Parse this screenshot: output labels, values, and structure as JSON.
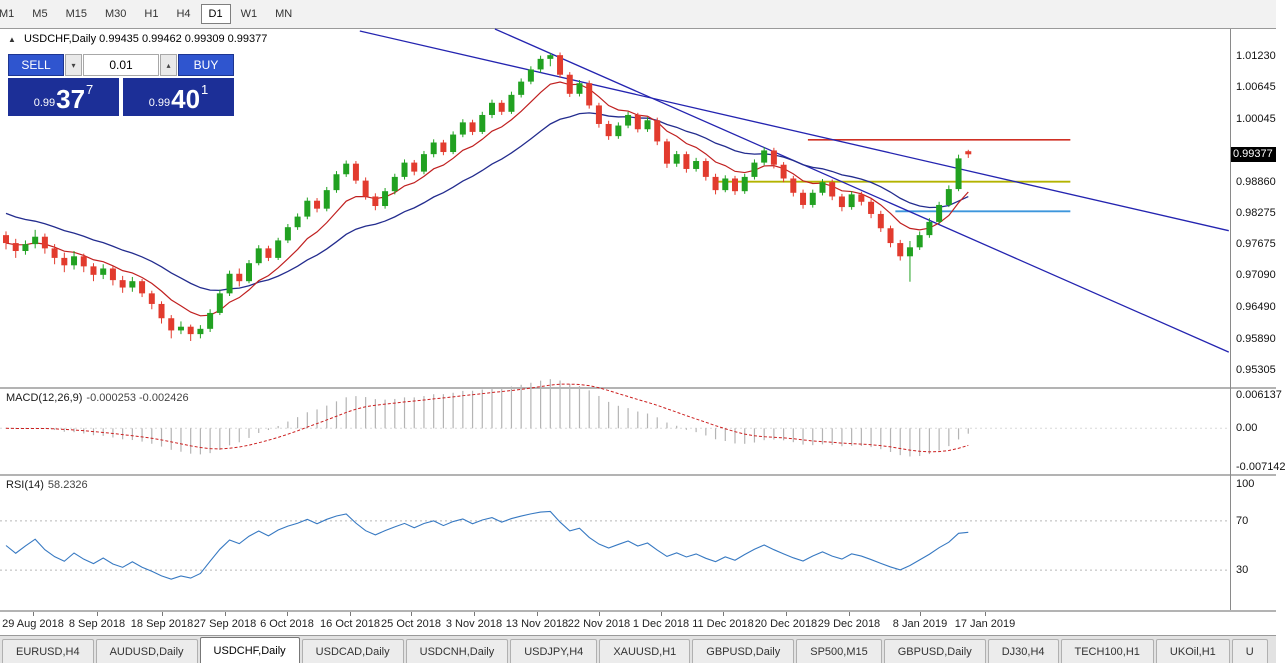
{
  "toolbar": {
    "timeframes": [
      "M1",
      "M5",
      "M15",
      "M30",
      "H1",
      "H4",
      "D1",
      "W1",
      "MN"
    ],
    "active": "D1"
  },
  "chart": {
    "symbol_line": "USDCHF,Daily 0.99435 0.99462 0.99309 0.99377",
    "price_badge": "0.99377",
    "price_axis": [
      "1.01230",
      "1.00645",
      "1.00045",
      "0.98860",
      "0.98275",
      "0.97675",
      "0.97090",
      "0.96490",
      "0.95890",
      "0.95305"
    ]
  },
  "trade": {
    "sell_label": "SELL",
    "buy_label": "BUY",
    "volume": "0.01",
    "sell_price_prefix": "0.99",
    "sell_price_main": "37",
    "sell_price_sup": "7",
    "buy_price_prefix": "0.99",
    "buy_price_main": "40",
    "buy_price_sup": "1"
  },
  "macd": {
    "name": "MACD(12,26,9)",
    "values": "-0.000253 -0.002426",
    "axis": [
      "0.006137",
      "0.00",
      "-0.007142"
    ]
  },
  "rsi": {
    "name": "RSI(14)",
    "value": "58.2326",
    "axis": [
      "100",
      "70",
      "30"
    ],
    "levels": [
      70,
      30
    ]
  },
  "tabs": [
    "EURUSD,H4",
    "AUDUSD,Daily",
    "USDCHF,Daily",
    "USDCAD,Daily",
    "USDCNH,Daily",
    "USDJPY,H4",
    "XAUUSD,H1",
    "GBPUSD,Daily",
    "SP500,M15",
    "GBPUSD,Daily",
    "DJ30,H4",
    "TECH100,H1",
    "UKOil,H1",
    "U"
  ],
  "tabs_active_index": 2,
  "chart_data": {
    "type": "candlestick",
    "symbol": "USDCHF",
    "timeframe": "Daily",
    "last_ohlc": {
      "open": 0.99435,
      "high": 0.99462,
      "low": 0.99309,
      "close": 0.99377
    },
    "y_range": [
      0.94981,
      1.01744
    ],
    "candles": [
      [
        0.9785,
        0.9792,
        0.9758,
        0.977
      ],
      [
        0.977,
        0.9778,
        0.9742,
        0.9755
      ],
      [
        0.9755,
        0.9775,
        0.9748,
        0.9768
      ],
      [
        0.9768,
        0.9795,
        0.976,
        0.9782
      ],
      [
        0.9782,
        0.9788,
        0.975,
        0.976
      ],
      [
        0.976,
        0.9768,
        0.973,
        0.9742
      ],
      [
        0.9742,
        0.9752,
        0.9715,
        0.9728
      ],
      [
        0.9728,
        0.9755,
        0.972,
        0.9745
      ],
      [
        0.9745,
        0.975,
        0.9715,
        0.9726
      ],
      [
        0.9726,
        0.9732,
        0.9698,
        0.971
      ],
      [
        0.971,
        0.973,
        0.9702,
        0.9722
      ],
      [
        0.9722,
        0.9726,
        0.969,
        0.97
      ],
      [
        0.97,
        0.9708,
        0.9676,
        0.9686
      ],
      [
        0.9686,
        0.9706,
        0.9678,
        0.9698
      ],
      [
        0.9698,
        0.9702,
        0.9668,
        0.9675
      ],
      [
        0.9675,
        0.968,
        0.9645,
        0.9655
      ],
      [
        0.9655,
        0.966,
        0.9618,
        0.9628
      ],
      [
        0.9628,
        0.9634,
        0.959,
        0.9605
      ],
      [
        0.9605,
        0.9622,
        0.9598,
        0.9612
      ],
      [
        0.9612,
        0.9616,
        0.9585,
        0.9598
      ],
      [
        0.9598,
        0.9615,
        0.959,
        0.9608
      ],
      [
        0.9608,
        0.9645,
        0.9602,
        0.9638
      ],
      [
        0.9638,
        0.9682,
        0.9634,
        0.9675
      ],
      [
        0.9675,
        0.9718,
        0.967,
        0.9712
      ],
      [
        0.9712,
        0.9722,
        0.9688,
        0.9698
      ],
      [
        0.9698,
        0.9738,
        0.9694,
        0.9732
      ],
      [
        0.9732,
        0.9766,
        0.9728,
        0.976
      ],
      [
        0.976,
        0.9765,
        0.9736,
        0.9742
      ],
      [
        0.9742,
        0.978,
        0.9738,
        0.9775
      ],
      [
        0.9775,
        0.9806,
        0.977,
        0.98
      ],
      [
        0.98,
        0.9826,
        0.9795,
        0.982
      ],
      [
        0.982,
        0.9856,
        0.9815,
        0.985
      ],
      [
        0.985,
        0.9855,
        0.9828,
        0.9835
      ],
      [
        0.9835,
        0.9876,
        0.983,
        0.987
      ],
      [
        0.987,
        0.9906,
        0.9865,
        0.99
      ],
      [
        0.99,
        0.9926,
        0.9895,
        0.992
      ],
      [
        0.992,
        0.9925,
        0.9882,
        0.9888
      ],
      [
        0.9888,
        0.9894,
        0.9852,
        0.9858
      ],
      [
        0.9858,
        0.9864,
        0.9832,
        0.984
      ],
      [
        0.984,
        0.9874,
        0.9835,
        0.9868
      ],
      [
        0.9868,
        0.9901,
        0.9862,
        0.9895
      ],
      [
        0.9895,
        0.9928,
        0.989,
        0.9922
      ],
      [
        0.9922,
        0.9927,
        0.9898,
        0.9905
      ],
      [
        0.9905,
        0.9944,
        0.99,
        0.9938
      ],
      [
        0.9938,
        0.9966,
        0.9932,
        0.996
      ],
      [
        0.996,
        0.9965,
        0.9936,
        0.9942
      ],
      [
        0.9942,
        0.9981,
        0.9938,
        0.9975
      ],
      [
        0.9975,
        1.0004,
        0.997,
        0.9998
      ],
      [
        0.9998,
        1.0003,
        0.9974,
        0.998
      ],
      [
        0.998,
        1.0018,
        0.9976,
        1.0012
      ],
      [
        1.0012,
        1.0041,
        1.0006,
        1.0035
      ],
      [
        1.0035,
        1.004,
        1.0012,
        1.0018
      ],
      [
        1.0018,
        1.0056,
        1.0014,
        1.005
      ],
      [
        1.005,
        1.0081,
        1.0045,
        1.0075
      ],
      [
        1.0075,
        1.0104,
        1.007,
        1.0098
      ],
      [
        1.0098,
        1.0124,
        1.0092,
        1.0118
      ],
      [
        1.0118,
        1.01285,
        1.0104,
        1.0125
      ],
      [
        1.0125,
        1.013,
        1.0082,
        1.0088
      ],
      [
        1.0088,
        1.0093,
        1.0046,
        1.0052
      ],
      [
        1.0052,
        1.0078,
        1.0047,
        1.0072
      ],
      [
        1.0072,
        1.0077,
        1.0024,
        1.003
      ],
      [
        1.003,
        1.0035,
        0.9988,
        0.9995
      ],
      [
        0.9995,
        1.0001,
        0.9965,
        0.9972
      ],
      [
        0.9972,
        0.9998,
        0.9967,
        0.9992
      ],
      [
        0.9992,
        1.0018,
        0.9987,
        1.0012
      ],
      [
        1.0012,
        1.0016,
        0.9979,
        0.9985
      ],
      [
        0.9985,
        1.0008,
        0.998,
        1.0002
      ],
      [
        1.0002,
        1.0007,
        0.9955,
        0.9962
      ],
      [
        0.9962,
        0.9967,
        0.9912,
        0.992
      ],
      [
        0.992,
        0.9944,
        0.9914,
        0.9938
      ],
      [
        0.9938,
        0.9943,
        0.9903,
        0.991
      ],
      [
        0.991,
        0.9931,
        0.9905,
        0.9925
      ],
      [
        0.9925,
        0.993,
        0.9888,
        0.9895
      ],
      [
        0.9895,
        0.9901,
        0.9862,
        0.987
      ],
      [
        0.987,
        0.9898,
        0.9866,
        0.9892
      ],
      [
        0.9892,
        0.9897,
        0.9861,
        0.9868
      ],
      [
        0.9868,
        0.9901,
        0.9863,
        0.9895
      ],
      [
        0.9895,
        0.9928,
        0.989,
        0.9922
      ],
      [
        0.9922,
        0.9951,
        0.9917,
        0.9945
      ],
      [
        0.9945,
        0.995,
        0.9911,
        0.9918
      ],
      [
        0.9918,
        0.9923,
        0.9885,
        0.9892
      ],
      [
        0.9892,
        0.9897,
        0.9858,
        0.9865
      ],
      [
        0.9865,
        0.9871,
        0.9835,
        0.9842
      ],
      [
        0.9842,
        0.9871,
        0.9837,
        0.9865
      ],
      [
        0.9865,
        0.9891,
        0.986,
        0.9885
      ],
      [
        0.9885,
        0.989,
        0.9851,
        0.9858
      ],
      [
        0.9858,
        0.9863,
        0.983,
        0.9838
      ],
      [
        0.9838,
        0.9868,
        0.9833,
        0.9862
      ],
      [
        0.9862,
        0.9867,
        0.9841,
        0.9848
      ],
      [
        0.9848,
        0.9853,
        0.9817,
        0.9825
      ],
      [
        0.9825,
        0.9831,
        0.9791,
        0.9798
      ],
      [
        0.9798,
        0.9803,
        0.9762,
        0.977
      ],
      [
        0.977,
        0.9776,
        0.9737,
        0.9745
      ],
      [
        0.9745,
        0.9774,
        0.9697,
        0.9762
      ],
      [
        0.9762,
        0.9792,
        0.9757,
        0.9785
      ],
      [
        0.9785,
        0.9817,
        0.978,
        0.981
      ],
      [
        0.981,
        0.9848,
        0.9806,
        0.9842
      ],
      [
        0.9842,
        0.9879,
        0.9838,
        0.9872
      ],
      [
        0.9872,
        0.9937,
        0.9868,
        0.993
      ],
      [
        0.99435,
        0.99462,
        0.99309,
        0.99377
      ]
    ],
    "x_labels": [
      {
        "label": "29 Aug 2018",
        "bar": 2.8
      },
      {
        "label": "8 Sep 2018",
        "bar": 9.4
      },
      {
        "label": "18 Sep 2018",
        "bar": 16.1
      },
      {
        "label": "27 Sep 2018",
        "bar": 22.5
      },
      {
        "label": "6 Oct 2018",
        "bar": 28.9
      },
      {
        "label": "16 Oct 2018",
        "bar": 35.4
      },
      {
        "label": "25 Oct 2018",
        "bar": 41.7
      },
      {
        "label": "3 Nov 2018",
        "bar": 48.1
      },
      {
        "label": "13 Nov 2018",
        "bar": 54.6
      },
      {
        "label": "22 Nov 2018",
        "bar": 61.0
      },
      {
        "label": "1 Dec 2018",
        "bar": 67.4
      },
      {
        "label": "11 Dec 2018",
        "bar": 73.8
      },
      {
        "label": "20 Dec 2018",
        "bar": 80.2
      },
      {
        "label": "29 Dec 2018",
        "bar": 86.7
      },
      {
        "label": "8 Jan 2019",
        "bar": 94.0
      },
      {
        "label": "17 Jan 2019",
        "bar": 100.7
      }
    ],
    "hlines": [
      {
        "name": "resistance-hline-red",
        "price": 0.9965,
        "bar1": 82.5,
        "bar2": 109.5,
        "color": "#d03024",
        "width": 1.6
      },
      {
        "name": "level-hline-yellow",
        "price": 0.9886,
        "bar1": 73.0,
        "bar2": 109.5,
        "color": "#b3b300",
        "width": 1.8
      },
      {
        "name": "support-hline-blue",
        "price": 0.983,
        "bar1": 91.5,
        "bar2": 109.5,
        "color": "#3d96dc",
        "width": 1.8
      }
    ],
    "trendlines": [
      {
        "name": "downtrend-line-upper",
        "bar1": 36.4,
        "price1": 1.01706,
        "bar2": 125.8,
        "price2": 0.97934,
        "color": "#2424b0"
      },
      {
        "name": "downtrend-line-inner",
        "bar1": 50.3,
        "price1": 1.01744,
        "bar2": 125.8,
        "price2": 0.9564,
        "color": "#2424b0"
      }
    ],
    "indicators": {
      "ma_fast": 8,
      "ma_slow": 20,
      "ma_slow_seed": 0.9832,
      "macd": [
        12,
        26,
        9
      ],
      "rsi_period": 14
    },
    "colors": {
      "candle_up": "#21a121",
      "candle_down": "#e23b2e",
      "ma_fast": "#c02020",
      "ma_slow": "#232c8e",
      "macd_histogram": "#b4b4b4",
      "macd_signal": "#cc2020",
      "rsi": "#3779c2"
    }
  }
}
